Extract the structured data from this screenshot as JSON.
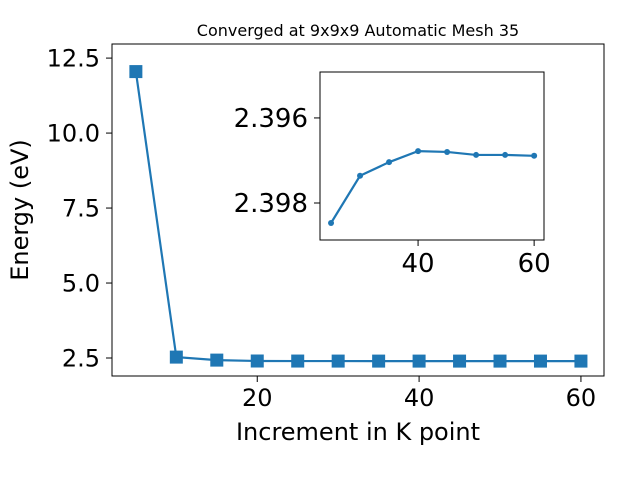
{
  "chart_data": [
    {
      "type": "line",
      "title": "Converged at 9x9x9 Automatic Mesh 35",
      "xlabel": "Increment in K point",
      "ylabel": "Energy (eV)",
      "x": [
        5,
        10,
        15,
        20,
        25,
        30,
        35,
        40,
        45,
        50,
        55,
        60
      ],
      "series": [
        {
          "color": "#1f77b4",
          "marker": "square",
          "values": [
            12.05,
            2.53,
            2.43,
            2.4,
            2.3985,
            2.3974,
            2.397,
            2.3968,
            2.3968,
            2.3969,
            2.3969,
            2.3969
          ]
        }
      ],
      "xlim": [
        2.05,
        62.85
      ],
      "ylim": [
        1.9,
        12.97
      ],
      "xticks": [
        20,
        40,
        60
      ],
      "yticks": [
        {
          "value": 2.5,
          "label": "2.5"
        },
        {
          "value": 5,
          "label": "5.0"
        },
        {
          "value": 7.5,
          "label": "7.5"
        },
        {
          "value": 10,
          "label": "10.0"
        },
        {
          "value": 12.5,
          "label": "12.5"
        }
      ]
    },
    {
      "type": "line",
      "x": [
        25,
        30,
        35,
        40,
        45,
        50,
        55,
        60
      ],
      "series": [
        {
          "color": "#1f77b4",
          "marker": "circle",
          "values": [
            2.39847,
            2.39736,
            2.39704,
            2.39678,
            2.3968,
            2.39687,
            2.39687,
            2.39689
          ]
        }
      ],
      "xlim": [
        23.1,
        61.7
      ],
      "ylim": [
        2.39887,
        2.39492
      ],
      "xticks": [
        40,
        60
      ],
      "yticks": [
        2.396,
        2.398
      ]
    }
  ]
}
